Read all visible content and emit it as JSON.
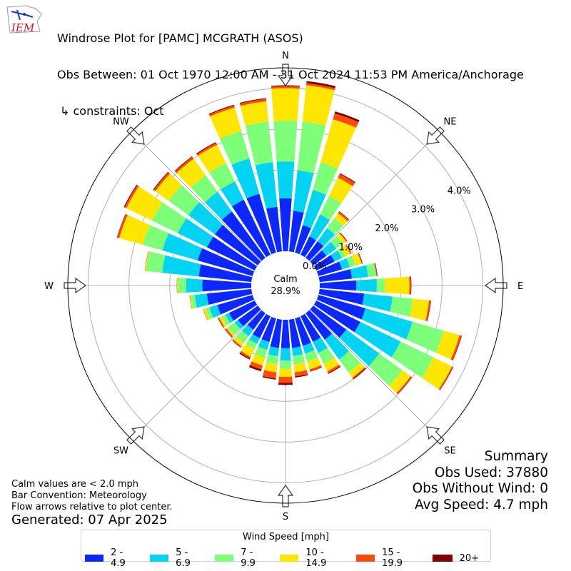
{
  "header": {
    "logo_text": "IEM",
    "title_line1": "Windrose Plot for [PAMC] MCGRATH (ASOS)",
    "title_line2": "Obs Between: 01 Oct 1970 12:00 AM - 31 Oct 2024 11:53 PM America/Anchorage",
    "title_line3": "↳ constraints: Oct"
  },
  "summary": {
    "heading": "Summary",
    "obs_used": "Obs Used: 37880",
    "obs_without_wind": "Obs Without Wind: 0",
    "avg_speed": "Avg Speed: 4.7 mph"
  },
  "notes": {
    "line1": "Calm values are < 2.0 mph",
    "line2": "Bar Convention: Meteorology",
    "line3": "Flow arrows relative to plot center.",
    "generated": "Generated: 07 Apr 2025"
  },
  "legend": {
    "title": "Wind Speed [mph]",
    "items": [
      {
        "label": "2 - 4.9",
        "color": "#0a28ff"
      },
      {
        "label": "5 - 6.9",
        "color": "#00d4f2"
      },
      {
        "label": "7 - 9.9",
        "color": "#7dff7a"
      },
      {
        "label": "10 - 14.9",
        "color": "#ffe600"
      },
      {
        "label": "15 - 19.9",
        "color": "#ff4a08"
      },
      {
        "label": "20+",
        "color": "#800000"
      }
    ]
  },
  "chart_data": {
    "type": "windrose",
    "calm": {
      "label": "Calm",
      "value": "28.9%"
    },
    "direction_labels": [
      "N",
      "NE",
      "E",
      "SE",
      "S",
      "SW",
      "W",
      "NW"
    ],
    "radial_ticks": [
      "0.0%",
      "1.0%",
      "2.0%",
      "3.0%",
      "4.0%"
    ],
    "radial_max": 4.5,
    "bin_colors": [
      "#0a28ff",
      "#00d4f2",
      "#7dff7a",
      "#ffe600",
      "#ff4a08",
      "#800000"
    ],
    "directions_deg": [
      0,
      10,
      20,
      30,
      40,
      50,
      60,
      70,
      80,
      90,
      100,
      110,
      120,
      130,
      140,
      150,
      160,
      170,
      180,
      190,
      200,
      210,
      220,
      230,
      240,
      250,
      260,
      270,
      280,
      290,
      300,
      310,
      320,
      330,
      340,
      350
    ],
    "cumulative": [
      [
        1.3,
        2.2,
        3.2,
        4.0,
        4.05,
        4.07
      ],
      [
        1.0,
        2.0,
        3.2,
        4.1,
        4.15,
        4.2
      ],
      [
        0.7,
        1.6,
        2.3,
        3.4,
        3.55,
        3.6
      ],
      [
        0.5,
        1.1,
        1.6,
        2.1,
        2.2,
        2.22
      ],
      [
        0.5,
        0.9,
        1.2,
        1.35,
        1.4,
        1.41
      ],
      [
        0.4,
        0.7,
        0.9,
        1.0,
        1.02,
        1.03
      ],
      [
        0.5,
        0.7,
        0.8,
        0.93,
        0.95,
        0.96
      ],
      [
        0.6,
        0.8,
        0.95,
        1.1,
        1.12,
        1.13
      ],
      [
        0.8,
        1.2,
        1.4,
        1.4,
        1.42,
        1.43
      ],
      [
        0.9,
        1.4,
        1.6,
        2.2,
        2.24,
        2.25
      ],
      [
        1.1,
        1.8,
        2.3,
        2.7,
        2.74,
        2.75
      ],
      [
        1.2,
        2.4,
        3.2,
        3.6,
        3.65,
        3.66
      ],
      [
        1.2,
        2.3,
        3.2,
        3.7,
        3.73,
        3.74
      ],
      [
        1.0,
        2.0,
        2.7,
        2.95,
        2.98,
        2.99
      ],
      [
        0.8,
        1.4,
        1.8,
        1.95,
        1.98,
        2.0
      ],
      [
        0.7,
        1.0,
        1.3,
        1.5,
        1.55,
        1.57
      ],
      [
        0.7,
        0.9,
        1.1,
        1.3,
        1.35,
        1.36
      ],
      [
        0.7,
        0.9,
        1.1,
        1.3,
        1.4,
        1.43
      ],
      [
        0.7,
        1.0,
        1.2,
        1.4,
        1.55,
        1.6
      ],
      [
        0.7,
        0.9,
        1.1,
        1.3,
        1.45,
        1.48
      ],
      [
        0.6,
        0.8,
        1.0,
        1.2,
        1.3,
        1.35
      ],
      [
        0.6,
        0.75,
        0.9,
        1.1,
        1.15,
        1.18
      ],
      [
        0.5,
        0.7,
        0.9,
        1.0,
        1.03,
        1.04
      ],
      [
        0.6,
        0.7,
        0.9,
        0.95,
        0.98,
        0.99
      ],
      [
        0.7,
        0.8,
        0.9,
        0.97,
        0.99,
        1.0
      ],
      [
        0.9,
        1.1,
        1.2,
        1.25,
        1.26,
        1.26
      ],
      [
        1.1,
        1.4,
        1.5,
        1.52,
        1.53,
        1.53
      ],
      [
        1.2,
        1.6,
        1.8,
        1.82,
        1.83,
        1.83
      ],
      [
        1.3,
        2.2,
        2.6,
        2.62,
        2.63,
        2.63
      ],
      [
        1.4,
        2.3,
        2.8,
        3.4,
        3.45,
        3.46
      ],
      [
        1.3,
        2.1,
        2.8,
        3.5,
        3.55,
        3.57
      ],
      [
        1.3,
        2.1,
        2.7,
        3.1,
        3.15,
        3.17
      ],
      [
        1.4,
        2.0,
        2.5,
        3.0,
        3.05,
        3.07
      ],
      [
        1.5,
        2.0,
        2.5,
        3.0,
        3.05,
        3.07
      ],
      [
        1.5,
        2.4,
        3.1,
        3.7,
        3.75,
        3.77
      ],
      [
        1.1,
        2.2,
        3.2,
        3.7,
        3.76,
        3.78
      ]
    ]
  }
}
